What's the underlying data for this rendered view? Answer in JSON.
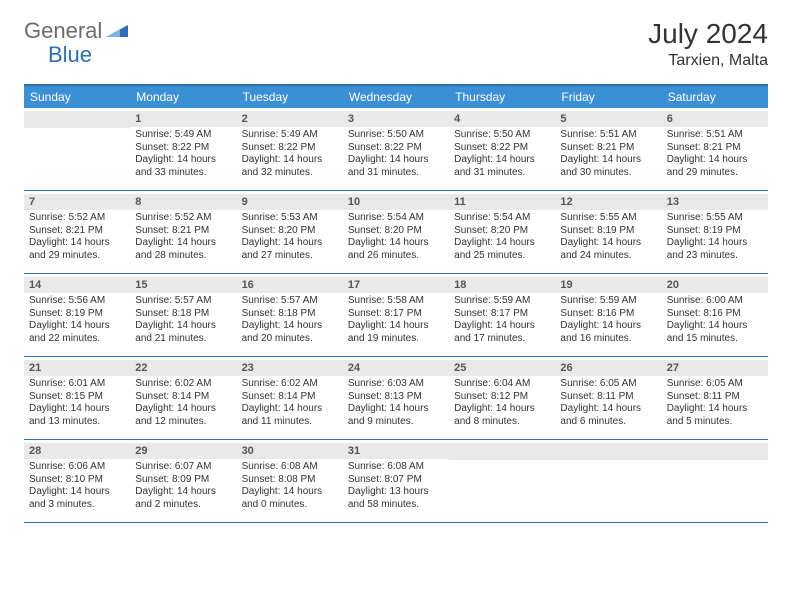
{
  "logo": {
    "part1": "General",
    "part2": "Blue"
  },
  "title": "July 2024",
  "location": "Tarxien, Malta",
  "weekdays": [
    "Sunday",
    "Monday",
    "Tuesday",
    "Wednesday",
    "Thursday",
    "Friday",
    "Saturday"
  ],
  "colors": {
    "header_bg": "#3b8fd4",
    "border": "#2f6fb0",
    "daynum_bg": "#e9e9e9",
    "text": "#333333"
  },
  "weeks": [
    [
      {
        "day": "",
        "sunrise": "",
        "sunset": "",
        "daylight": ""
      },
      {
        "day": "1",
        "sunrise": "Sunrise: 5:49 AM",
        "sunset": "Sunset: 8:22 PM",
        "daylight": "Daylight: 14 hours and 33 minutes."
      },
      {
        "day": "2",
        "sunrise": "Sunrise: 5:49 AM",
        "sunset": "Sunset: 8:22 PM",
        "daylight": "Daylight: 14 hours and 32 minutes."
      },
      {
        "day": "3",
        "sunrise": "Sunrise: 5:50 AM",
        "sunset": "Sunset: 8:22 PM",
        "daylight": "Daylight: 14 hours and 31 minutes."
      },
      {
        "day": "4",
        "sunrise": "Sunrise: 5:50 AM",
        "sunset": "Sunset: 8:22 PM",
        "daylight": "Daylight: 14 hours and 31 minutes."
      },
      {
        "day": "5",
        "sunrise": "Sunrise: 5:51 AM",
        "sunset": "Sunset: 8:21 PM",
        "daylight": "Daylight: 14 hours and 30 minutes."
      },
      {
        "day": "6",
        "sunrise": "Sunrise: 5:51 AM",
        "sunset": "Sunset: 8:21 PM",
        "daylight": "Daylight: 14 hours and 29 minutes."
      }
    ],
    [
      {
        "day": "7",
        "sunrise": "Sunrise: 5:52 AM",
        "sunset": "Sunset: 8:21 PM",
        "daylight": "Daylight: 14 hours and 29 minutes."
      },
      {
        "day": "8",
        "sunrise": "Sunrise: 5:52 AM",
        "sunset": "Sunset: 8:21 PM",
        "daylight": "Daylight: 14 hours and 28 minutes."
      },
      {
        "day": "9",
        "sunrise": "Sunrise: 5:53 AM",
        "sunset": "Sunset: 8:20 PM",
        "daylight": "Daylight: 14 hours and 27 minutes."
      },
      {
        "day": "10",
        "sunrise": "Sunrise: 5:54 AM",
        "sunset": "Sunset: 8:20 PM",
        "daylight": "Daylight: 14 hours and 26 minutes."
      },
      {
        "day": "11",
        "sunrise": "Sunrise: 5:54 AM",
        "sunset": "Sunset: 8:20 PM",
        "daylight": "Daylight: 14 hours and 25 minutes."
      },
      {
        "day": "12",
        "sunrise": "Sunrise: 5:55 AM",
        "sunset": "Sunset: 8:19 PM",
        "daylight": "Daylight: 14 hours and 24 minutes."
      },
      {
        "day": "13",
        "sunrise": "Sunrise: 5:55 AM",
        "sunset": "Sunset: 8:19 PM",
        "daylight": "Daylight: 14 hours and 23 minutes."
      }
    ],
    [
      {
        "day": "14",
        "sunrise": "Sunrise: 5:56 AM",
        "sunset": "Sunset: 8:19 PM",
        "daylight": "Daylight: 14 hours and 22 minutes."
      },
      {
        "day": "15",
        "sunrise": "Sunrise: 5:57 AM",
        "sunset": "Sunset: 8:18 PM",
        "daylight": "Daylight: 14 hours and 21 minutes."
      },
      {
        "day": "16",
        "sunrise": "Sunrise: 5:57 AM",
        "sunset": "Sunset: 8:18 PM",
        "daylight": "Daylight: 14 hours and 20 minutes."
      },
      {
        "day": "17",
        "sunrise": "Sunrise: 5:58 AM",
        "sunset": "Sunset: 8:17 PM",
        "daylight": "Daylight: 14 hours and 19 minutes."
      },
      {
        "day": "18",
        "sunrise": "Sunrise: 5:59 AM",
        "sunset": "Sunset: 8:17 PM",
        "daylight": "Daylight: 14 hours and 17 minutes."
      },
      {
        "day": "19",
        "sunrise": "Sunrise: 5:59 AM",
        "sunset": "Sunset: 8:16 PM",
        "daylight": "Daylight: 14 hours and 16 minutes."
      },
      {
        "day": "20",
        "sunrise": "Sunrise: 6:00 AM",
        "sunset": "Sunset: 8:16 PM",
        "daylight": "Daylight: 14 hours and 15 minutes."
      }
    ],
    [
      {
        "day": "21",
        "sunrise": "Sunrise: 6:01 AM",
        "sunset": "Sunset: 8:15 PM",
        "daylight": "Daylight: 14 hours and 13 minutes."
      },
      {
        "day": "22",
        "sunrise": "Sunrise: 6:02 AM",
        "sunset": "Sunset: 8:14 PM",
        "daylight": "Daylight: 14 hours and 12 minutes."
      },
      {
        "day": "23",
        "sunrise": "Sunrise: 6:02 AM",
        "sunset": "Sunset: 8:14 PM",
        "daylight": "Daylight: 14 hours and 11 minutes."
      },
      {
        "day": "24",
        "sunrise": "Sunrise: 6:03 AM",
        "sunset": "Sunset: 8:13 PM",
        "daylight": "Daylight: 14 hours and 9 minutes."
      },
      {
        "day": "25",
        "sunrise": "Sunrise: 6:04 AM",
        "sunset": "Sunset: 8:12 PM",
        "daylight": "Daylight: 14 hours and 8 minutes."
      },
      {
        "day": "26",
        "sunrise": "Sunrise: 6:05 AM",
        "sunset": "Sunset: 8:11 PM",
        "daylight": "Daylight: 14 hours and 6 minutes."
      },
      {
        "day": "27",
        "sunrise": "Sunrise: 6:05 AM",
        "sunset": "Sunset: 8:11 PM",
        "daylight": "Daylight: 14 hours and 5 minutes."
      }
    ],
    [
      {
        "day": "28",
        "sunrise": "Sunrise: 6:06 AM",
        "sunset": "Sunset: 8:10 PM",
        "daylight": "Daylight: 14 hours and 3 minutes."
      },
      {
        "day": "29",
        "sunrise": "Sunrise: 6:07 AM",
        "sunset": "Sunset: 8:09 PM",
        "daylight": "Daylight: 14 hours and 2 minutes."
      },
      {
        "day": "30",
        "sunrise": "Sunrise: 6:08 AM",
        "sunset": "Sunset: 8:08 PM",
        "daylight": "Daylight: 14 hours and 0 minutes."
      },
      {
        "day": "31",
        "sunrise": "Sunrise: 6:08 AM",
        "sunset": "Sunset: 8:07 PM",
        "daylight": "Daylight: 13 hours and 58 minutes."
      },
      {
        "day": "",
        "sunrise": "",
        "sunset": "",
        "daylight": ""
      },
      {
        "day": "",
        "sunrise": "",
        "sunset": "",
        "daylight": ""
      },
      {
        "day": "",
        "sunrise": "",
        "sunset": "",
        "daylight": ""
      }
    ]
  ]
}
